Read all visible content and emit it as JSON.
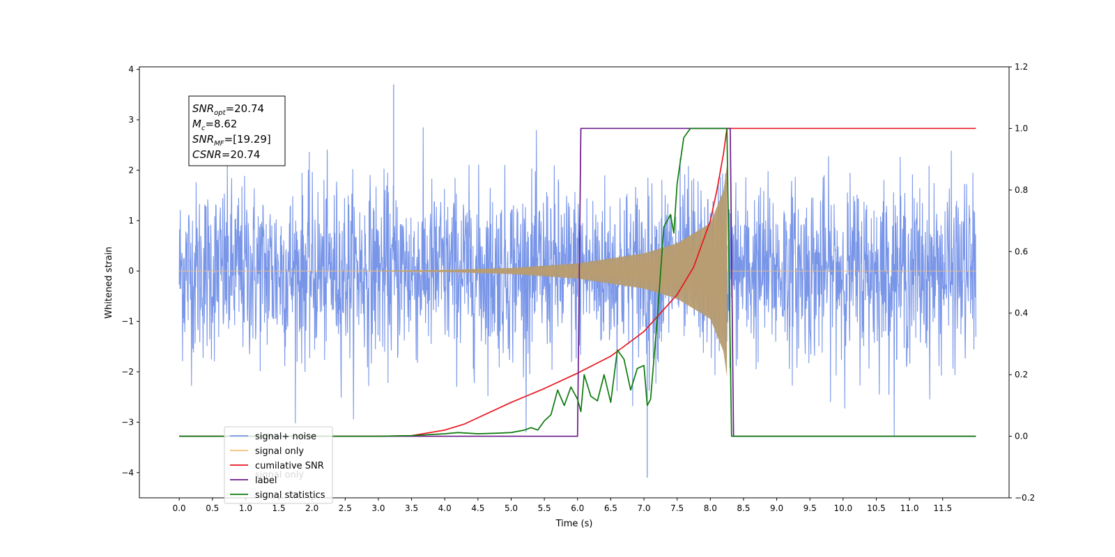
{
  "chart_data": {
    "type": "line",
    "xlabel": "Time (s)",
    "ylabel": "Whitened strain",
    "xlim": [
      -0.6,
      12.5
    ],
    "ylim_left": [
      -4.5,
      4.05
    ],
    "ylim_right": [
      -0.2,
      1.2
    ],
    "x_ticks": [
      "0.0",
      "0.5",
      "1.0",
      "1.5",
      "2.0",
      "2.5",
      "3.0",
      "3.5",
      "4.0",
      "4.5",
      "5.0",
      "5.5",
      "6.0",
      "6.5",
      "7.0",
      "7.5",
      "8.0",
      "8.5",
      "9.0",
      "9.5",
      "10.0",
      "10.5",
      "11.0",
      "11.5"
    ],
    "y_left_ticks": [
      "4",
      "3",
      "2",
      "1",
      "0",
      "−1",
      "−2",
      "−3",
      "−4"
    ],
    "y_right_ticks": [
      "1.2",
      "1.0",
      "0.8",
      "0.6",
      "0.4",
      "0.2",
      "0.0",
      "−0.2"
    ],
    "legend_position": "lower-left",
    "annotation": {
      "lines": [
        {
          "var": "SNR",
          "sub": "opt",
          "value": "=20.74"
        },
        {
          "var": "M",
          "sub": "c",
          "value": "=8.62"
        },
        {
          "var": "SNR",
          "sub": "MF",
          "value": "=[19.29]"
        },
        {
          "var": "CSNR",
          "sub": "",
          "value": "=20.74"
        }
      ]
    },
    "series": [
      {
        "name": "signal+ noise",
        "axis": "left",
        "color": "#7895e8",
        "kind": "noise",
        "x_range": [
          0.0,
          12.0
        ],
        "typical_amplitude": 1.4,
        "peak_values": [
          3.7,
          -4.1
        ]
      },
      {
        "name": "signal only",
        "axis": "left",
        "color": "#f5c07a",
        "kind": "chirp",
        "x_range": [
          0.0,
          12.0
        ],
        "chirp_end": 8.25,
        "envelope": [
          [
            0.0,
            0.0
          ],
          [
            3.0,
            0.005
          ],
          [
            4.0,
            0.02
          ],
          [
            5.0,
            0.06
          ],
          [
            6.0,
            0.15
          ],
          [
            7.0,
            0.35
          ],
          [
            7.5,
            0.55
          ],
          [
            8.0,
            0.95
          ],
          [
            8.2,
            1.6
          ],
          [
            8.25,
            2.1
          ]
        ]
      },
      {
        "name": "cumilative SNR",
        "axis": "right",
        "color": "#e8141e",
        "points": [
          [
            0.0,
            0.0
          ],
          [
            3.0,
            0.0
          ],
          [
            3.5,
            0.002
          ],
          [
            4.0,
            0.02
          ],
          [
            4.3,
            0.04
          ],
          [
            4.5,
            0.06
          ],
          [
            5.0,
            0.11
          ],
          [
            5.5,
            0.155
          ],
          [
            6.0,
            0.205
          ],
          [
            6.5,
            0.26
          ],
          [
            7.0,
            0.34
          ],
          [
            7.5,
            0.46
          ],
          [
            7.75,
            0.55
          ],
          [
            8.0,
            0.7
          ],
          [
            8.1,
            0.8
          ],
          [
            8.2,
            0.92
          ],
          [
            8.25,
            1.0
          ],
          [
            12.0,
            1.0
          ]
        ]
      },
      {
        "name": "label",
        "axis": "right",
        "color": "#6a1b8a",
        "points": [
          [
            0.0,
            0.0
          ],
          [
            6.0,
            0.0
          ],
          [
            6.05,
            1.0
          ],
          [
            8.3,
            1.0
          ],
          [
            8.35,
            0.0
          ],
          [
            12.0,
            0.0
          ]
        ]
      },
      {
        "name": "signal statistics",
        "axis": "right",
        "color": "#0a7a0a",
        "points": [
          [
            0.0,
            0.0
          ],
          [
            3.0,
            0.0
          ],
          [
            3.5,
            0.002
          ],
          [
            4.0,
            0.008
          ],
          [
            4.2,
            0.012
          ],
          [
            4.5,
            0.008
          ],
          [
            4.8,
            0.01
          ],
          [
            5.0,
            0.012
          ],
          [
            5.2,
            0.02
          ],
          [
            5.3,
            0.028
          ],
          [
            5.4,
            0.02
          ],
          [
            5.5,
            0.05
          ],
          [
            5.6,
            0.07
          ],
          [
            5.7,
            0.15
          ],
          [
            5.8,
            0.1
          ],
          [
            5.9,
            0.16
          ],
          [
            6.0,
            0.12
          ],
          [
            6.05,
            0.08
          ],
          [
            6.1,
            0.2
          ],
          [
            6.2,
            0.13
          ],
          [
            6.3,
            0.115
          ],
          [
            6.4,
            0.2
          ],
          [
            6.5,
            0.11
          ],
          [
            6.6,
            0.28
          ],
          [
            6.7,
            0.25
          ],
          [
            6.8,
            0.15
          ],
          [
            6.9,
            0.22
          ],
          [
            7.0,
            0.23
          ],
          [
            7.05,
            0.1
          ],
          [
            7.1,
            0.12
          ],
          [
            7.2,
            0.38
          ],
          [
            7.3,
            0.68
          ],
          [
            7.4,
            0.72
          ],
          [
            7.45,
            0.66
          ],
          [
            7.5,
            0.82
          ],
          [
            7.6,
            0.97
          ],
          [
            7.7,
            1.0
          ],
          [
            8.25,
            1.0
          ],
          [
            8.32,
            0.0
          ],
          [
            12.0,
            0.0
          ]
        ]
      }
    ],
    "legend_entries": [
      "signal+ noise",
      "signal only",
      "cumilative SNR",
      "label",
      "signal statistics"
    ],
    "overlapped_legend_text": "signal only"
  }
}
